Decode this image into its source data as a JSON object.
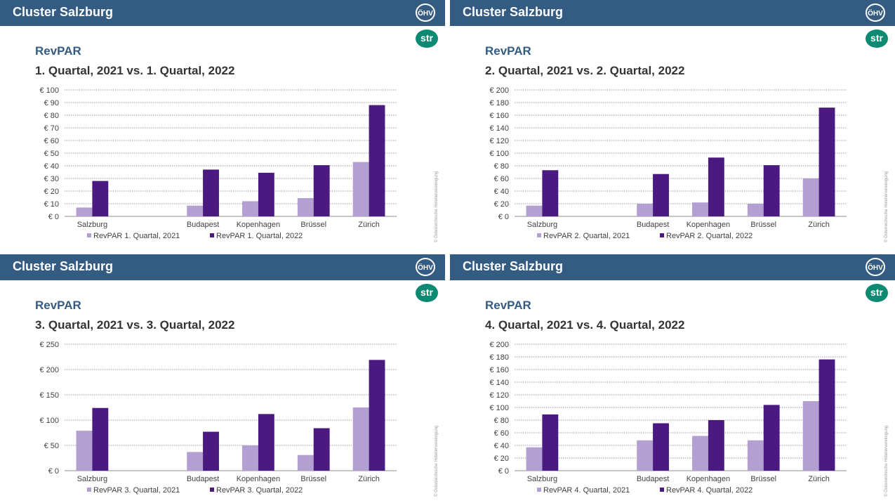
{
  "panels": [
    {
      "header": {
        "title": "Cluster Salzburg",
        "logo": "ÖHV",
        "str_logo": "str"
      },
      "section_title": "RevPAR",
      "chart_title": "1. Quartal, 2021 vs. 1. Quartal, 2022",
      "copyright": "© Österreichische Hoteliervereinigung",
      "chart_data": {
        "type": "bar",
        "categories": [
          "Salzburg",
          "",
          "Budapest",
          "Kopenhagen",
          "Brüssel",
          "Zürich"
        ],
        "series": [
          {
            "name": "RevPAR 1. Quartal, 2021",
            "color": "#b39fd1",
            "values": [
              7,
              null,
              8.5,
              12,
              14.5,
              43
            ]
          },
          {
            "name": "RevPAR 1. Quartal, 2022",
            "color": "#4a1a80",
            "values": [
              28,
              null,
              37,
              34.5,
              40.5,
              88
            ]
          }
        ],
        "ylim": [
          0,
          100
        ],
        "yticks": [
          "€ 0",
          "€ 10",
          "€ 20",
          "€ 30",
          "€ 40",
          "€ 50",
          "€ 60",
          "€ 70",
          "€ 80",
          "€ 90",
          "€ 100"
        ],
        "grid": true,
        "legend": "bottom"
      }
    },
    {
      "header": {
        "title": "Cluster Salzburg",
        "logo": "ÖHV",
        "str_logo": "str"
      },
      "section_title": "RevPAR",
      "chart_title": "2. Quartal, 2021 vs. 2. Quartal, 2022",
      "copyright": "© Österreichische Hoteliervereinigung",
      "chart_data": {
        "type": "bar",
        "categories": [
          "Salzburg",
          "",
          "Budapest",
          "Kopenhagen",
          "Brüssel",
          "Zürich"
        ],
        "series": [
          {
            "name": "RevPAR 2. Quartal, 2021",
            "color": "#b39fd1",
            "values": [
              17,
              null,
              20,
              22,
              20,
              60
            ]
          },
          {
            "name": "RevPAR 2. Quartal, 2022",
            "color": "#4a1a80",
            "values": [
              73,
              null,
              67,
              93,
              81,
              172
            ]
          }
        ],
        "ylim": [
          0,
          200
        ],
        "yticks": [
          "€ 0",
          "€ 20",
          "€ 40",
          "€ 60",
          "€ 80",
          "€ 100",
          "€ 120",
          "€ 140",
          "€ 160",
          "€ 180",
          "€ 200"
        ],
        "grid": true,
        "legend": "bottom"
      }
    },
    {
      "header": {
        "title": "Cluster Salzburg",
        "logo": "ÖHV",
        "str_logo": "str"
      },
      "section_title": "RevPAR",
      "chart_title": "3. Quartal, 2021 vs. 3. Quartal, 2022",
      "copyright": "© Österreichische Hoteliervereinigung",
      "chart_data": {
        "type": "bar",
        "categories": [
          "Salzburg",
          "",
          "Budapest",
          "Kopenhagen",
          "Brüssel",
          "Zürich"
        ],
        "series": [
          {
            "name": "RevPAR 3. Quartal, 2021",
            "color": "#b39fd1",
            "values": [
              79,
              null,
              37,
              50,
              31,
              125
            ]
          },
          {
            "name": "RevPAR 3. Quartal, 2022",
            "color": "#4a1a80",
            "values": [
              124,
              null,
              77,
              112,
              84,
              219
            ]
          }
        ],
        "ylim": [
          0,
          250
        ],
        "yticks": [
          "€ 0",
          "€ 50",
          "€ 100",
          "€ 150",
          "€ 200",
          "€ 250"
        ],
        "grid": true,
        "legend": "bottom"
      }
    },
    {
      "header": {
        "title": "Cluster Salzburg",
        "logo": "ÖHV",
        "str_logo": "str"
      },
      "section_title": "RevPAR",
      "chart_title": "4. Quartal, 2021 vs. 4. Quartal, 2022",
      "copyright": "© Österreichische Hoteliervereinigung",
      "chart_data": {
        "type": "bar",
        "categories": [
          "Salzburg",
          "",
          "Budapest",
          "Kopenhagen",
          "Brüssel",
          "Zürich"
        ],
        "series": [
          {
            "name": "RevPAR 4. Quartal, 2021",
            "color": "#b39fd1",
            "values": [
              37,
              null,
              48,
              55,
              48,
              110
            ]
          },
          {
            "name": "RevPAR 4. Quartal, 2022",
            "color": "#4a1a80",
            "values": [
              89,
              null,
              75,
              80,
              104,
              176
            ]
          }
        ],
        "ylim": [
          0,
          200
        ],
        "yticks": [
          "€ 0",
          "€ 20",
          "€ 40",
          "€ 60",
          "€ 80",
          "€ 100",
          "€ 120",
          "€ 140",
          "€ 160",
          "€ 180",
          "€ 200"
        ],
        "grid": true,
        "legend": "bottom"
      }
    }
  ]
}
